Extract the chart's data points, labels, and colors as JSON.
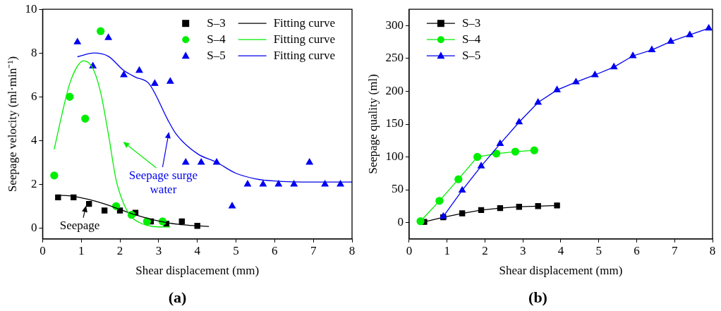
{
  "chart_data": [
    {
      "type": "scatter",
      "title": "(a)",
      "xlabel": "Shear displacement (mm)",
      "ylabel": "Seepage velocity (ml·min⁻¹)",
      "xlim": [
        0,
        8
      ],
      "xticks": [
        0,
        1,
        2,
        3,
        4,
        5,
        6,
        7,
        8
      ],
      "ylim": [
        -0.5,
        10
      ],
      "yticks": [
        0,
        2,
        4,
        6,
        8,
        10
      ],
      "grid": false,
      "legend": "top right",
      "series": [
        {
          "name": "S–3",
          "type": "scatter",
          "marker": "square",
          "color": "#000000",
          "x": [
            0.4,
            0.8,
            1.2,
            1.6,
            2.0,
            2.4,
            2.8,
            3.2,
            3.6,
            4.0
          ],
          "values": [
            1.4,
            1.4,
            1.1,
            0.8,
            0.8,
            0.7,
            0.3,
            0.2,
            0.3,
            0.1
          ]
        },
        {
          "name": "S–4",
          "type": "scatter",
          "marker": "circle",
          "color": "#00ee00",
          "x": [
            0.3,
            0.7,
            1.1,
            1.5,
            1.9,
            2.3,
            2.7,
            3.1
          ],
          "values": [
            2.4,
            6.0,
            5.0,
            9.0,
            1.0,
            0.6,
            0.3,
            0.3
          ]
        },
        {
          "name": "S–5",
          "type": "scatter",
          "marker": "triangle",
          "color": "#0000ee",
          "x": [
            0.9,
            1.3,
            1.7,
            2.1,
            2.5,
            2.9,
            3.3,
            3.7,
            4.1,
            4.5,
            4.9,
            5.3,
            5.7,
            6.1,
            6.5,
            6.9,
            7.3,
            7.7
          ],
          "values": [
            8.5,
            7.4,
            8.7,
            7.0,
            7.2,
            6.6,
            6.7,
            3.0,
            3.0,
            3.0,
            1.0,
            2.0,
            2.0,
            2.0,
            2.0,
            3.0,
            2.0,
            2.0
          ]
        },
        {
          "name": "Fitting curve",
          "type": "line",
          "marker": "none",
          "color": "#000000",
          "x": [
            0.4,
            0.8,
            1.2,
            1.6,
            2.0,
            2.4,
            2.8,
            3.2,
            3.6,
            4.0,
            4.3
          ],
          "values": [
            1.5,
            1.45,
            1.3,
            1.1,
            0.85,
            0.6,
            0.4,
            0.25,
            0.15,
            0.1,
            0.07
          ]
        },
        {
          "name": "Fitting curve",
          "type": "line",
          "marker": "none",
          "color": "#00ee00",
          "x": [
            0.3,
            0.5,
            0.7,
            0.9,
            1.06,
            1.3,
            1.5,
            1.7,
            1.9,
            2.1,
            2.3,
            2.5,
            2.7,
            3.0,
            3.3
          ],
          "values": [
            3.6,
            5.2,
            6.6,
            7.4,
            7.65,
            7.3,
            6.2,
            4.3,
            2.2,
            1.1,
            0.5,
            0.25,
            0.12,
            0.05,
            0.05
          ]
        },
        {
          "name": "Fitting curve",
          "type": "line",
          "marker": "none",
          "color": "#0000ee",
          "x": [
            0.9,
            1.33,
            1.7,
            2.1,
            2.4,
            2.75,
            3.25,
            3.45,
            4.0,
            4.5,
            5.0,
            5.5,
            6.0,
            7.0,
            8.0
          ],
          "values": [
            7.83,
            8.0,
            7.85,
            7.2,
            6.9,
            6.6,
            4.9,
            4.3,
            3.4,
            3.0,
            2.5,
            2.25,
            2.15,
            2.1,
            2.1
          ]
        }
      ],
      "annotations": [
        "Seepage surge water",
        "Seepage"
      ]
    },
    {
      "type": "line",
      "title": "(b)",
      "xlabel": "Shear displacement (mm)",
      "ylabel": "Seepage quality (ml)",
      "xlim": [
        0,
        8
      ],
      "xticks": [
        0,
        1,
        2,
        3,
        4,
        5,
        6,
        7,
        8
      ],
      "ylim": [
        -25,
        325
      ],
      "yticks": [
        0,
        50,
        100,
        150,
        200,
        250,
        300
      ],
      "grid": false,
      "legend": "top left",
      "series": [
        {
          "name": "S–3",
          "marker": "square",
          "color": "#000000",
          "x": [
            0.4,
            0.9,
            1.4,
            1.9,
            2.4,
            2.9,
            3.4,
            3.9
          ],
          "values": [
            1,
            8,
            14,
            19,
            22,
            24,
            25,
            26
          ]
        },
        {
          "name": "S–4",
          "marker": "circle",
          "color": "#00ee00",
          "x": [
            0.3,
            0.8,
            1.3,
            1.8,
            2.3,
            2.8,
            3.3
          ],
          "values": [
            2,
            33,
            66,
            100,
            105,
            108,
            110
          ]
        },
        {
          "name": "S–5",
          "marker": "triangle",
          "color": "#0000ee",
          "x": [
            0.9,
            1.4,
            1.9,
            2.4,
            2.9,
            3.4,
            3.9,
            4.4,
            4.9,
            5.4,
            5.9,
            6.4,
            6.9,
            7.4,
            7.9
          ],
          "values": [
            9,
            49,
            86,
            120,
            153,
            183,
            202,
            214,
            225,
            237,
            254,
            263,
            276,
            286,
            296
          ]
        }
      ]
    }
  ]
}
